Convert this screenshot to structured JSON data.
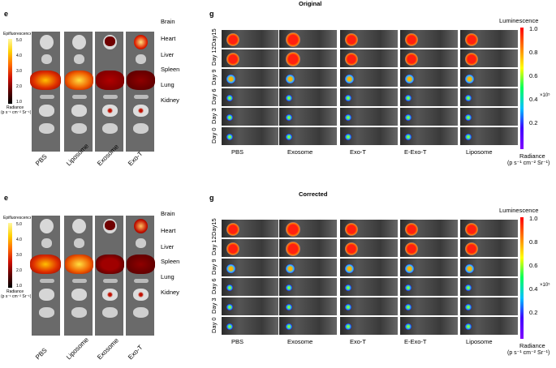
{
  "panels": [
    {
      "id": "top",
      "heading": "Original",
      "letter_e": "e",
      "letter_g": "g",
      "organs": [
        "Brain",
        "Heart",
        "Liver",
        "Spleen",
        "Lung",
        "Kidney"
      ],
      "groups_e": [
        "PBS",
        "Liposome",
        "Exosome",
        "Exo-T"
      ],
      "days": [
        "Day15",
        "Day 12",
        "Day 9",
        "Day 6",
        "Day 3",
        "Day 0"
      ],
      "groups_g": [
        "PBS",
        "Exosome",
        "Exo-T",
        "E-Exo-T",
        "Liposome"
      ],
      "epi_title": "Epifluorescence",
      "epi_ticks": [
        "5.0",
        "4.0",
        "3.0",
        "2.0",
        "1.0"
      ],
      "epi_unit_1": "Radiance",
      "epi_unit_2": "(p s⁻¹ cm⁻² Sr⁻¹)",
      "lum_title": "Luminescence",
      "lum_ticks": [
        "1.0",
        "0.8",
        "0.6",
        "0.4",
        "0.2"
      ],
      "lum_exp": "×10⁵",
      "lum_unit_1": "Radiance",
      "lum_unit_2": "(p s⁻¹ cm⁻² Sr⁻¹)"
    },
    {
      "id": "bottom",
      "heading": "Corrected",
      "letter_e": "e",
      "letter_g": "g",
      "organs": [
        "Brain",
        "Heart",
        "Liver",
        "Spleen",
        "Lung",
        "Kidney"
      ],
      "groups_e": [
        "PBS",
        "Liposome",
        "Exosome",
        "Exo-T"
      ],
      "days": [
        "Day15",
        "Day 12",
        "Day 9",
        "Day 6",
        "Day 3",
        "Day 0"
      ],
      "groups_g": [
        "PBS",
        "Exosome",
        "Exo-T",
        "E-Exo-T",
        "Liposome"
      ],
      "epi_title": "Epifluorescence",
      "epi_ticks": [
        "5.0",
        "4.0",
        "3.0",
        "2.0",
        "1.0"
      ],
      "epi_unit_1": "Radiance",
      "epi_unit_2": "(p s⁻¹ cm⁻² Sr⁻¹)",
      "lum_title": "Luminescence",
      "lum_ticks": [
        "1.0",
        "0.8",
        "0.6",
        "0.4",
        "0.2"
      ],
      "lum_exp": "×10⁵",
      "lum_unit_1": "Radiance",
      "lum_unit_2": "(p s⁻¹ cm⁻² Sr⁻¹)"
    }
  ],
  "colors": {
    "epi_gradient": [
      "#fff8a0",
      "#ffd000",
      "#ff6a00",
      "#d01000",
      "#600000",
      "#000000"
    ],
    "lum_gradient": [
      "#ff0000",
      "#ff8000",
      "#ffff00",
      "#00ff60",
      "#00c0ff",
      "#4000ff",
      "#8000ff"
    ],
    "signal_red": "#e82010",
    "signal_blue": "#2040ff"
  },
  "icons": {
    "mouse_image": "mouse-bioluminescence-photo",
    "organ_image": "ex-vivo-organ-photo"
  }
}
